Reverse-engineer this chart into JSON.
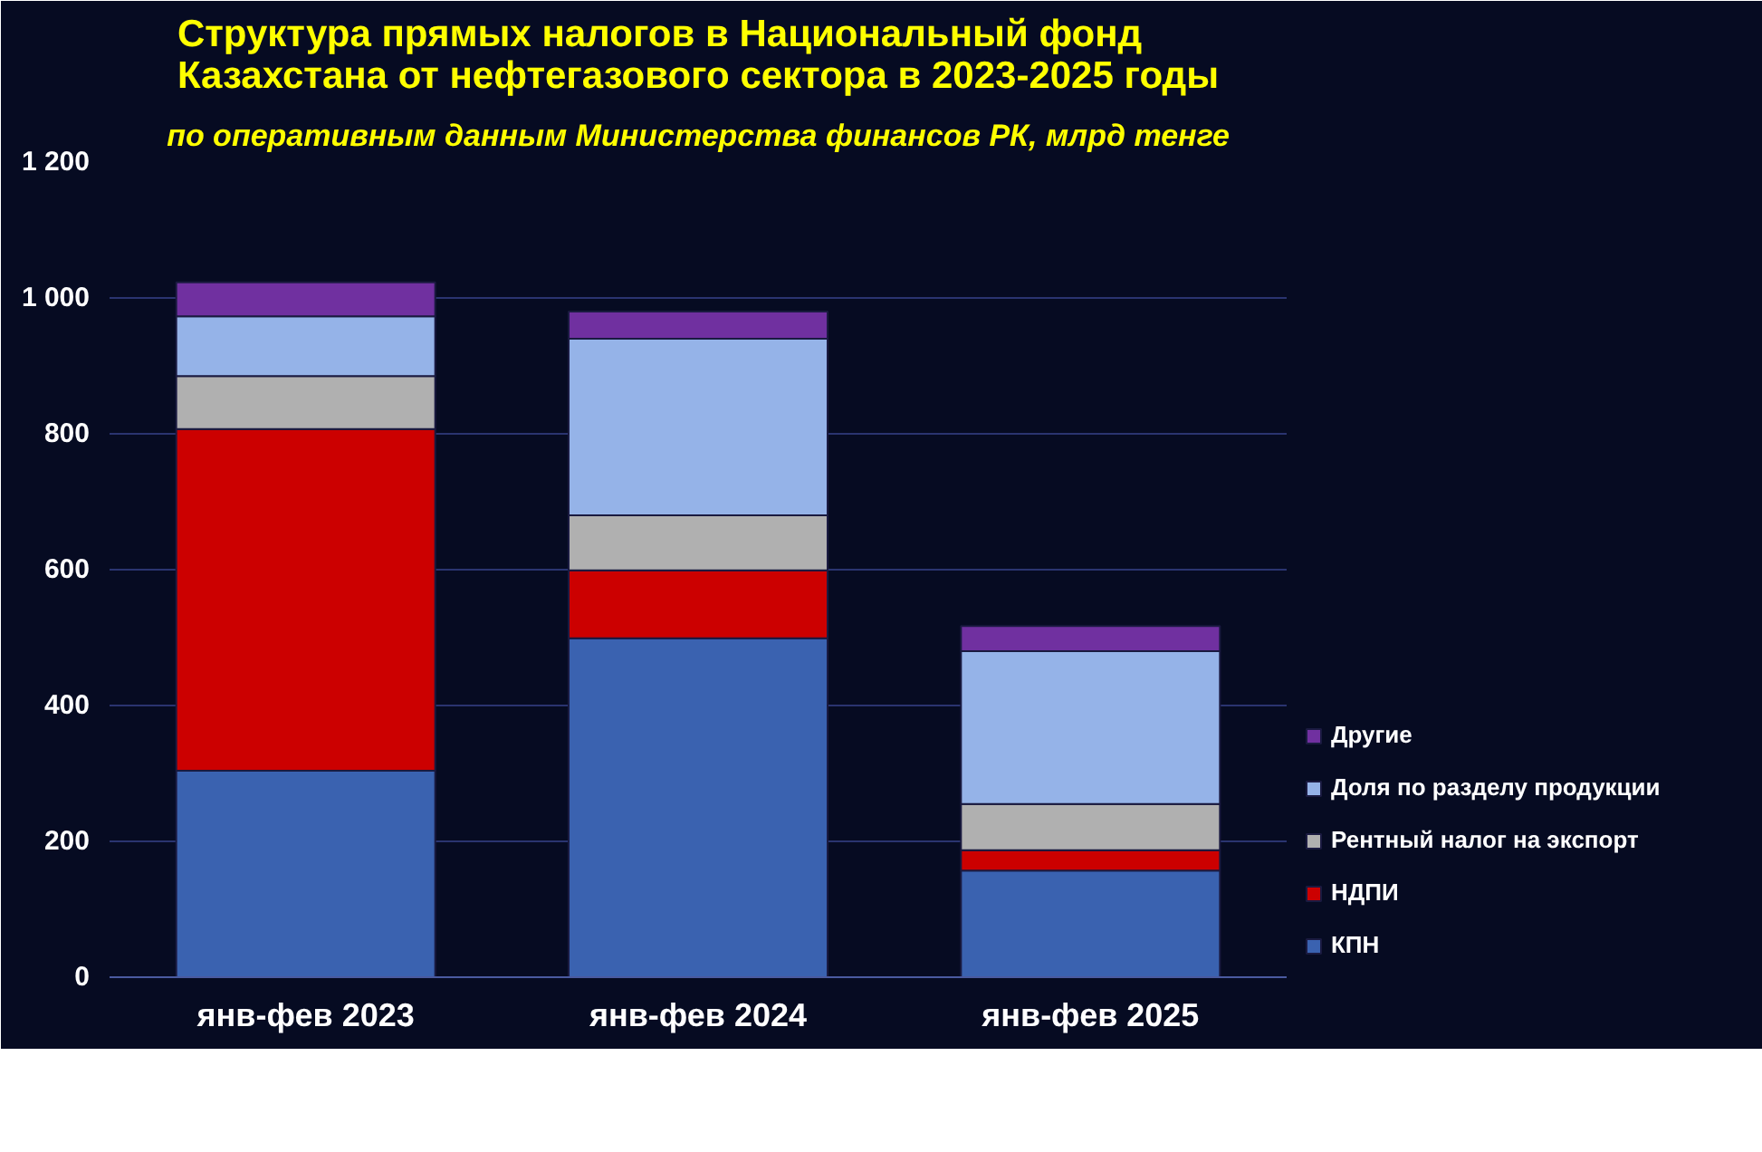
{
  "chart_data": {
    "type": "bar",
    "stacked": true,
    "title": "Структура прямых налогов в Национальный фонд Казахстана от нефтегазового сектора в 2023-2025 годы",
    "subtitle": "по оперативным данным Министерства финансов РК, млрд тенге",
    "categories": [
      "янв-фев 2023",
      "янв-фев 2024",
      "янв-фев 2025"
    ],
    "series": [
      {
        "name": "КПН",
        "color": "#3a62b0",
        "values": [
          304,
          499,
          157
        ]
      },
      {
        "name": "НДПИ",
        "color": "#cc0000",
        "values": [
          503,
          100,
          30
        ]
      },
      {
        "name": "Рентный налог на экспорт",
        "color": "#b0b0b0",
        "values": [
          78,
          81,
          68
        ]
      },
      {
        "name": "Доля по разделу продукции",
        "color": "#95b3e8",
        "values": [
          88,
          260,
          225
        ]
      },
      {
        "name": "Другие",
        "color": "#7030a0",
        "values": [
          50,
          40,
          37
        ]
      }
    ],
    "ylim": [
      0,
      1200
    ],
    "yticks": [
      0,
      200,
      400,
      600,
      800,
      {
        "value": 1000,
        "label": "1 000"
      },
      {
        "value": 1200,
        "label": "1 200"
      }
    ],
    "grid": "y",
    "legend": "right"
  }
}
